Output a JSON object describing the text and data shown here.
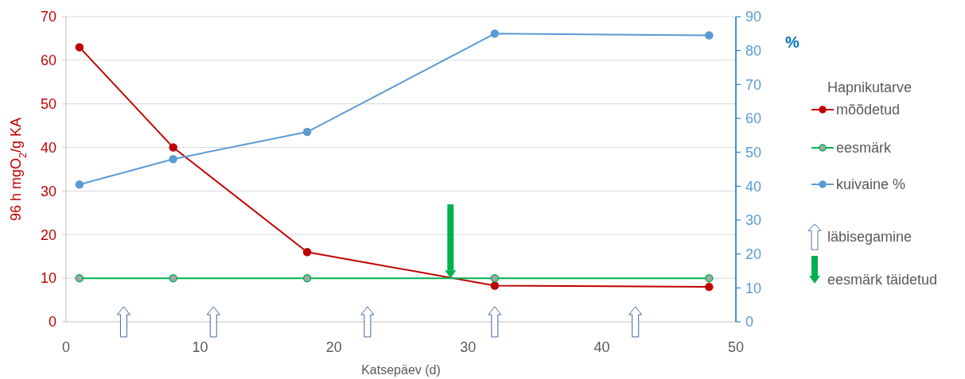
{
  "chart_data": {
    "type": "line",
    "ylabel": "96 h mgO$_{2}$/g KA",
    "y2label": "%",
    "xlabel": "Katsepäev (d)",
    "legend_title": "Hapnikutarve",
    "legend": "right",
    "grid": "y",
    "marker": "circle",
    "x": [
      1,
      8,
      18,
      32,
      48
    ],
    "xlim": [
      0,
      50
    ],
    "xticks": [
      0,
      10,
      20,
      30,
      40,
      50
    ],
    "ylim": [
      0,
      70
    ],
    "yticks": [
      0,
      10,
      20,
      30,
      40,
      50,
      60,
      70
    ],
    "y2lim": [
      0,
      90
    ],
    "y2ticks": [
      0,
      10,
      20,
      30,
      40,
      50,
      60,
      70,
      80,
      90
    ],
    "series": [
      {
        "name": "mõõdetud",
        "color": "#c00000",
        "values": [
          63,
          40,
          16,
          8.3,
          8
        ]
      },
      {
        "name": "eesmärk",
        "color": "#00b050",
        "values": [
          10,
          10,
          10,
          10,
          10
        ]
      },
      {
        "name": "kuivaine %",
        "color": "#5b9bd5",
        "axis": "y2",
        "values": [
          40.5,
          48,
          56,
          85,
          84.5
        ]
      },
      {
        "name": "läbisegamine",
        "type": "scatter",
        "marker": "none",
        "color": "#44679e",
        "x": [
          4.3,
          11,
          22.5,
          32,
          42.5
        ],
        "values": [
          0,
          0,
          0,
          0,
          0
        ]
      },
      {
        "name": "eesmärk täidetud",
        "type": "scatter",
        "marker": "triangle",
        "color": "#00b050",
        "x": [
          28.7
        ],
        "values": [
          10.9
        ]
      }
    ]
  }
}
